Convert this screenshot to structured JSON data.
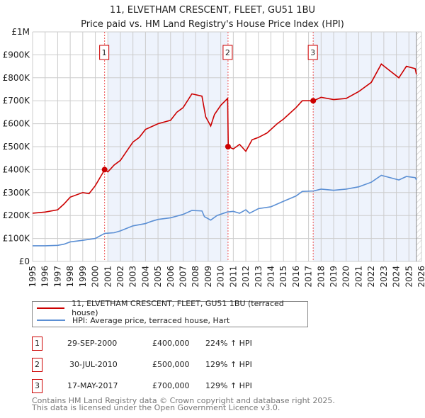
{
  "title": "11, ELVETHAM CRESCENT, FLEET, GU51 1BU",
  "subtitle": "Price paid vs. HM Land Registry's House Price Index (HPI)",
  "chart_data": {
    "type": "line",
    "xlim": [
      1995,
      2026
    ],
    "ylim": [
      0,
      1000000
    ],
    "yticks": [
      {
        "v": 0,
        "label": "£0"
      },
      {
        "v": 100000,
        "label": "£100K"
      },
      {
        "v": 200000,
        "label": "£200K"
      },
      {
        "v": 300000,
        "label": "£300K"
      },
      {
        "v": 400000,
        "label": "£400K"
      },
      {
        "v": 500000,
        "label": "£500K"
      },
      {
        "v": 600000,
        "label": "£600K"
      },
      {
        "v": 700000,
        "label": "£700K"
      },
      {
        "v": 800000,
        "label": "£800K"
      },
      {
        "v": 900000,
        "label": "£900K"
      },
      {
        "v": 1000000,
        "label": "£1M"
      }
    ],
    "xticks": [
      "1995",
      "1996",
      "1997",
      "1998",
      "1999",
      "2000",
      "2001",
      "2002",
      "2003",
      "2004",
      "2005",
      "2006",
      "2007",
      "2008",
      "2009",
      "2010",
      "2011",
      "2012",
      "2013",
      "2014",
      "2015",
      "2016",
      "2017",
      "2018",
      "2019",
      "2020",
      "2021",
      "2022",
      "2023",
      "2024",
      "2025",
      "2026"
    ],
    "series": [
      {
        "name": "11, ELVETHAM CRESCENT, FLEET, GU51 1BU (terraced house)",
        "color": "#cc0000",
        "x": [
          1995,
          1996,
          1997,
          1997.5,
          1998,
          1999,
          1999.5,
          2000,
          2000.75,
          2001,
          2001.5,
          2002,
          2002.5,
          2003,
          2003.5,
          2004,
          2005,
          2006,
          2006.5,
          2007,
          2007.7,
          2008.5,
          2008.8,
          2009.2,
          2009.5,
          2010,
          2010.55,
          2010.6,
          2011,
          2011.5,
          2012,
          2012.5,
          2013,
          2013.7,
          2014.5,
          2015,
          2016,
          2016.5,
          2017.4,
          2018,
          2019,
          2020,
          2021,
          2022,
          2022.8,
          2023.5,
          2024.2,
          2024.8,
          2025.5,
          2025.6
        ],
        "y": [
          210000,
          215000,
          225000,
          250000,
          280000,
          300000,
          295000,
          330000,
          400000,
          390000,
          420000,
          440000,
          480000,
          520000,
          540000,
          575000,
          600000,
          615000,
          650000,
          670000,
          730000,
          720000,
          630000,
          590000,
          640000,
          680000,
          710000,
          500000,
          490000,
          510000,
          480000,
          530000,
          540000,
          560000,
          600000,
          620000,
          670000,
          700000,
          700000,
          715000,
          705000,
          710000,
          740000,
          780000,
          860000,
          830000,
          800000,
          850000,
          840000,
          815000
        ]
      },
      {
        "name": "HPI: Average price, terraced house, Hart",
        "color": "#5b8fd4",
        "x": [
          1995,
          1996,
          1997,
          1997.5,
          1998,
          1999,
          2000,
          2000.75,
          2001.5,
          2002,
          2003,
          2004,
          2004.5,
          2005,
          2006,
          2007,
          2007.7,
          2008.5,
          2008.7,
          2009.2,
          2009.7,
          2010.5,
          2011,
          2011.5,
          2012,
          2012.3,
          2013,
          2014,
          2015,
          2016,
          2016.5,
          2017.4,
          2018,
          2019,
          2020,
          2021,
          2022,
          2022.8,
          2023.5,
          2024.2,
          2024.8,
          2025.5,
          2025.6
        ],
        "y": [
          68000,
          68000,
          70000,
          75000,
          85000,
          92000,
          100000,
          122000,
          125000,
          133000,
          155000,
          165000,
          175000,
          183000,
          190000,
          205000,
          222000,
          220000,
          195000,
          180000,
          200000,
          215000,
          218000,
          210000,
          225000,
          210000,
          230000,
          238000,
          262000,
          285000,
          305000,
          307000,
          315000,
          310000,
          315000,
          325000,
          345000,
          375000,
          365000,
          355000,
          370000,
          365000,
          355000
        ]
      }
    ],
    "sales": [
      {
        "n": "1",
        "x": 2000.74,
        "y": 400000
      },
      {
        "n": "2",
        "x": 2010.58,
        "y": 500000
      },
      {
        "n": "3",
        "x": 2017.37,
        "y": 700000
      }
    ],
    "legend_placement": "bottom"
  },
  "legend": [
    "11, ELVETHAM CRESCENT, FLEET, GU51 1BU (terraced house)",
    "HPI: Average price, terraced house, Hart"
  ],
  "transactions": [
    {
      "n": "1",
      "date": "29-SEP-2000",
      "price": "£400,000",
      "hpi": "224% ↑ HPI"
    },
    {
      "n": "2",
      "date": "30-JUL-2010",
      "price": "£500,000",
      "hpi": "129% ↑ HPI"
    },
    {
      "n": "3",
      "date": "17-MAY-2017",
      "price": "£700,000",
      "hpi": "129% ↑ HPI"
    }
  ],
  "footer": [
    "Contains HM Land Registry data © Crown copyright and database right 2025.",
    "This data is licensed under the Open Government Licence v3.0."
  ]
}
